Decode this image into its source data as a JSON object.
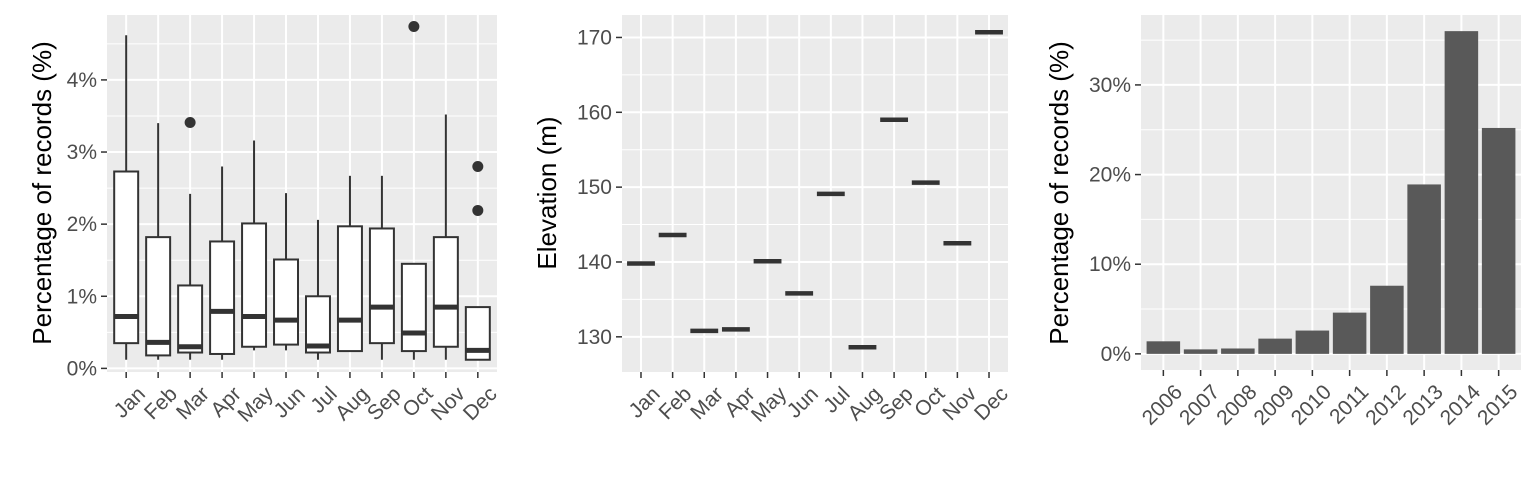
{
  "colors": {
    "panel_background": "#ebebeb",
    "grid": "#ffffff",
    "box_fill": "#ffffff",
    "box_stroke": "#333333",
    "bar_fill": "#595959",
    "tick_text": "#4d4d4d"
  },
  "chart_data": [
    {
      "type": "box",
      "ylabel": "Percentage of records (%)",
      "xlabel": "",
      "categories": [
        "Jan",
        "Feb",
        "Mar",
        "Apr",
        "May",
        "Jun",
        "Jul",
        "Aug",
        "Sep",
        "Oct",
        "Nov",
        "Dec"
      ],
      "yticks": [
        0,
        1,
        2,
        3,
        4
      ],
      "ytick_labels": [
        "0%",
        "1%",
        "2%",
        "3%",
        "4%"
      ],
      "ylim": [
        -0.05,
        4.9
      ],
      "grid": true,
      "boxes": [
        {
          "min": 0.12,
          "q1": 0.35,
          "median": 0.72,
          "q3": 2.73,
          "max": 4.62,
          "outliers": []
        },
        {
          "min": 0.12,
          "q1": 0.18,
          "median": 0.36,
          "q3": 1.82,
          "max": 3.4,
          "outliers": []
        },
        {
          "min": 0.12,
          "q1": 0.22,
          "median": 0.3,
          "q3": 1.15,
          "max": 2.42,
          "outliers": [
            3.41
          ]
        },
        {
          "min": 0.12,
          "q1": 0.2,
          "median": 0.79,
          "q3": 1.76,
          "max": 2.8,
          "outliers": []
        },
        {
          "min": 0.25,
          "q1": 0.3,
          "median": 0.72,
          "q3": 2.01,
          "max": 3.16,
          "outliers": []
        },
        {
          "min": 0.25,
          "q1": 0.33,
          "median": 0.67,
          "q3": 1.51,
          "max": 2.43,
          "outliers": []
        },
        {
          "min": 0.12,
          "q1": 0.22,
          "median": 0.31,
          "q3": 1.0,
          "max": 2.06,
          "outliers": []
        },
        {
          "min": 0.24,
          "q1": 0.24,
          "median": 0.67,
          "q3": 1.97,
          "max": 2.67,
          "outliers": []
        },
        {
          "min": 0.12,
          "q1": 0.35,
          "median": 0.85,
          "q3": 1.94,
          "max": 2.67,
          "outliers": []
        },
        {
          "min": 0.12,
          "q1": 0.24,
          "median": 0.49,
          "q3": 1.45,
          "max": 1.45,
          "outliers": [
            4.74
          ]
        },
        {
          "min": 0.12,
          "q1": 0.3,
          "median": 0.85,
          "q3": 1.82,
          "max": 3.52,
          "outliers": []
        },
        {
          "min": 0.12,
          "q1": 0.12,
          "median": 0.25,
          "q3": 0.85,
          "max": 0.85,
          "outliers": [
            2.8,
            2.19
          ]
        }
      ]
    },
    {
      "type": "scatter",
      "ylabel": "Elevation (m)",
      "xlabel": "",
      "categories": [
        "Jan",
        "Feb",
        "Mar",
        "Apr",
        "May",
        "Jun",
        "Jul",
        "Aug",
        "Sep",
        "Oct",
        "Nov",
        "Dec"
      ],
      "values": [
        139.8,
        143.6,
        130.8,
        131.0,
        140.1,
        135.8,
        149.1,
        128.6,
        159.0,
        150.6,
        142.5,
        170.7
      ],
      "yticks": [
        130,
        140,
        150,
        160,
        170
      ],
      "ytick_labels": [
        "130",
        "140",
        "150",
        "160",
        "170"
      ],
      "ylim": [
        125.3,
        173.0
      ],
      "grid": true
    },
    {
      "type": "bar",
      "ylabel": "Percentage of records (%)",
      "xlabel": "",
      "categories": [
        "2006",
        "2007",
        "2008",
        "2009",
        "2010",
        "2011",
        "2012",
        "2013",
        "2014",
        "2015"
      ],
      "values": [
        1.4,
        0.5,
        0.6,
        1.7,
        2.6,
        4.6,
        7.6,
        18.9,
        36.0,
        25.2
      ],
      "yticks": [
        0,
        10,
        20,
        30
      ],
      "ytick_labels": [
        "0%",
        "10%",
        "20%",
        "30%"
      ],
      "ylim": [
        -1.8,
        37.8
      ],
      "grid": true
    }
  ]
}
